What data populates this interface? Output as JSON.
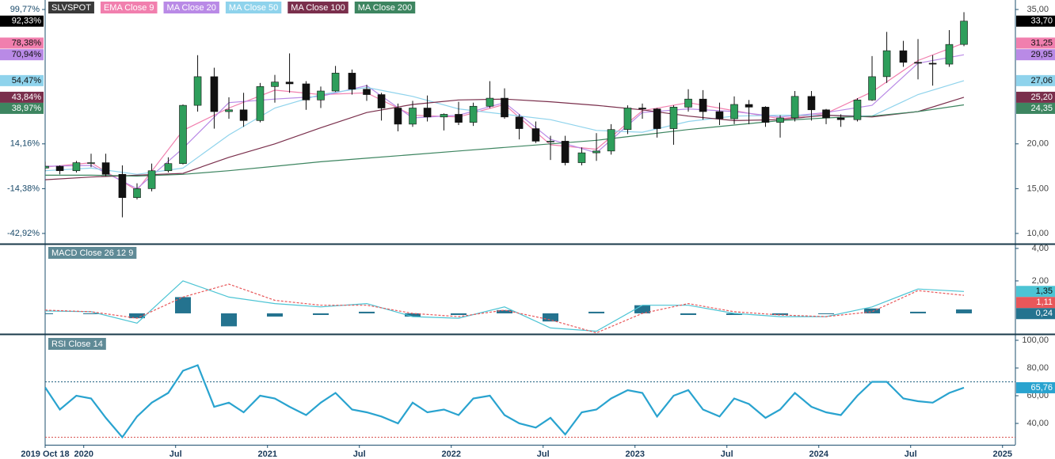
{
  "chart_data": [
    {
      "type": "candlestick",
      "name": "SLVSPOT",
      "color": "#000000",
      "up_color": "#2e9e5b",
      "down_color": "#111111",
      "x": [
        2019.79,
        2019.87,
        2019.96,
        2020.04,
        2020.12,
        2020.21,
        2020.29,
        2020.37,
        2020.46,
        2020.54,
        2020.62,
        2020.71,
        2020.79,
        2020.87,
        2020.96,
        2021.04,
        2021.12,
        2021.21,
        2021.29,
        2021.37,
        2021.46,
        2021.54,
        2021.62,
        2021.71,
        2021.79,
        2021.87,
        2021.96,
        2022.04,
        2022.12,
        2022.21,
        2022.29,
        2022.37,
        2022.46,
        2022.54,
        2022.62,
        2022.71,
        2022.79,
        2022.87,
        2022.96,
        2023.04,
        2023.12,
        2023.21,
        2023.29,
        2023.37,
        2023.46,
        2023.54,
        2023.62,
        2023.71,
        2023.79,
        2023.87,
        2023.96,
        2024.04,
        2024.12,
        2024.21,
        2024.29,
        2024.37,
        2024.46,
        2024.54,
        2024.62,
        2024.71,
        2024.79
      ],
      "open": [
        17.3,
        17.5,
        17.0,
        17.9,
        17.9,
        16.6,
        14.0,
        15.0,
        17.0,
        17.8,
        24.3,
        27.5,
        23.6,
        23.8,
        22.6,
        26.4,
        26.9,
        26.7,
        24.9,
        25.9,
        27.9,
        26.1,
        25.5,
        24.0,
        22.2,
        24.0,
        23.0,
        23.3,
        22.4,
        24.2,
        25.1,
        23.0,
        21.7,
        20.3,
        20.3,
        17.9,
        19.0,
        19.2,
        21.6,
        24.0,
        23.9,
        21.7,
        24.1,
        25.0,
        23.6,
        22.8,
        24.4,
        24.1,
        22.4,
        22.9,
        25.3,
        23.8,
        22.9,
        22.7,
        24.9,
        27.5,
        30.4,
        29.1,
        29.0,
        28.9,
        31.1
      ],
      "high": [
        18.0,
        17.6,
        18.1,
        18.9,
        18.9,
        17.6,
        15.6,
        17.8,
        18.5,
        24.4,
        29.9,
        28.5,
        25.2,
        25.7,
        26.8,
        27.7,
        30.1,
        27.0,
        26.4,
        28.7,
        28.3,
        26.6,
        25.7,
        24.5,
        24.8,
        25.4,
        23.4,
        24.7,
        24.6,
        27.0,
        26.2,
        23.3,
        22.5,
        20.9,
        20.9,
        19.6,
        21.2,
        22.2,
        24.3,
        24.5,
        24.0,
        24.3,
        26.1,
        26.0,
        24.6,
        25.3,
        24.9,
        24.2,
        23.2,
        25.9,
        25.9,
        23.9,
        23.3,
        25.1,
        29.8,
        32.5,
        31.5,
        31.7,
        29.9,
        32.7,
        34.7
      ],
      "low": [
        16.9,
        16.6,
        16.8,
        17.4,
        16.4,
        11.8,
        13.8,
        14.7,
        16.8,
        17.7,
        23.6,
        21.7,
        22.8,
        21.9,
        22.4,
        24.6,
        25.7,
        23.8,
        24.0,
        25.8,
        25.5,
        24.8,
        22.6,
        21.4,
        21.9,
        22.5,
        21.5,
        22.1,
        22.0,
        24.0,
        22.8,
        20.5,
        20.1,
        18.2,
        17.6,
        17.6,
        18.1,
        18.8,
        21.1,
        22.8,
        20.7,
        19.9,
        23.6,
        22.7,
        22.1,
        22.2,
        22.2,
        21.9,
        20.7,
        22.5,
        22.6,
        22.2,
        21.9,
        22.5,
        24.8,
        26.8,
        28.6,
        27.2,
        26.5,
        28.6,
        30.9
      ],
      "close": [
        17.5,
        17.0,
        17.9,
        17.9,
        16.6,
        14.0,
        15.0,
        17.0,
        17.8,
        24.3,
        27.5,
        23.6,
        23.8,
        22.6,
        26.4,
        26.9,
        26.7,
        24.9,
        25.9,
        27.9,
        26.1,
        25.5,
        24.0,
        22.2,
        24.0,
        23.0,
        23.3,
        22.4,
        24.2,
        25.1,
        23.0,
        21.7,
        20.3,
        20.3,
        17.9,
        19.0,
        19.2,
        21.6,
        24.0,
        23.9,
        21.7,
        24.1,
        25.0,
        23.6,
        22.8,
        24.4,
        24.1,
        22.4,
        22.9,
        25.3,
        23.8,
        22.9,
        22.7,
        24.9,
        27.5,
        30.4,
        29.1,
        29.0,
        28.9,
        31.1,
        33.7
      ],
      "last_label": "33,70",
      "last_percent_label": "92,33%",
      "xlim": [
        2019.79,
        2025.07
      ],
      "ylim": [
        8.85,
        36.06
      ],
      "yticks": [
        {
          "value": 10,
          "label": "10,00"
        },
        {
          "value": 15,
          "label": "15,00"
        },
        {
          "value": 20,
          "label": "20,00"
        },
        {
          "value": 35,
          "label": "35,00"
        }
      ],
      "yticks_left": [
        {
          "value": 35,
          "label": "99,77%"
        },
        {
          "value": 20,
          "label": "14,16%"
        },
        {
          "value": 15,
          "label": "-14,38%"
        },
        {
          "value": 10,
          "label": "-42,92%"
        }
      ],
      "overlays": {
        "x": [
          2019.79,
          2020.04,
          2020.29,
          2020.54,
          2020.79,
          2021.04,
          2021.29,
          2021.54,
          2021.79,
          2022.04,
          2022.29,
          2022.54,
          2022.79,
          2023.04,
          2023.29,
          2023.54,
          2023.79,
          2024.04,
          2024.29,
          2024.54,
          2024.79
        ],
        "series": [
          {
            "name": "EMA Close 9",
            "color": "#f17fae",
            "last_label": "31,25",
            "last_percent_label": "78,38%",
            "values": [
              17.4,
              17.9,
              14.8,
              21.5,
              24.0,
              26.0,
              25.5,
              25.7,
              23.2,
              23.0,
              24.4,
              19.9,
              19.4,
              23.7,
              24.6,
              23.7,
              22.8,
              23.4,
              25.8,
              29.3,
              31.25
            ]
          },
          {
            "name": "MA Close 20",
            "color": "#b98ae6",
            "last_label": "29,95",
            "last_percent_label": "70,94%",
            "values": [
              17.5,
              17.6,
              15.0,
              19.5,
              24.6,
              25.0,
              25.3,
              26.5,
              22.9,
              23.2,
              24.6,
              20.5,
              19.0,
              23.5,
              23.9,
              23.6,
              23.0,
              23.5,
              24.3,
              29.0,
              29.95
            ]
          },
          {
            "name": "MA Close 50",
            "color": "#8fd3ec",
            "last_label": "27,06",
            "last_percent_label": "54,47%",
            "values": [
              17.0,
              17.3,
              16.6,
              17.3,
              21.0,
              24.0,
              25.5,
              26.3,
              25.3,
              23.9,
              23.3,
              22.7,
              21.5,
              21.3,
              22.5,
              23.1,
              23.2,
              23.2,
              23.1,
              25.5,
              27.06
            ]
          },
          {
            "name": "MA Close 100",
            "color": "#7a2f4c",
            "last_label": "25,20",
            "last_percent_label": "43,84%",
            "values": [
              16.0,
              16.3,
              16.5,
              16.7,
              18.5,
              20.0,
              21.8,
              23.5,
              24.4,
              24.9,
              25.0,
              24.7,
              24.3,
              23.8,
              23.1,
              22.6,
              22.7,
              23.2,
              23.0,
              23.6,
              25.2
            ]
          },
          {
            "name": "MA Close 200",
            "color": "#3d8560",
            "last_label": "24,35",
            "last_percent_label": "38,97%",
            "values": [
              16.5,
              16.5,
              16.4,
              16.6,
              17.0,
              17.5,
              18.0,
              18.4,
              18.8,
              19.2,
              19.6,
              20.0,
              20.4,
              21.0,
              21.6,
              22.1,
              22.6,
              22.9,
              23.1,
              23.6,
              24.35
            ]
          }
        ]
      }
    },
    {
      "type": "macd",
      "title": "MACD Close 26 12 9",
      "x": [
        2019.79,
        2020.04,
        2020.29,
        2020.54,
        2020.79,
        2021.04,
        2021.29,
        2021.54,
        2021.79,
        2022.04,
        2022.29,
        2022.54,
        2022.79,
        2023.04,
        2023.29,
        2023.54,
        2023.79,
        2024.04,
        2024.29,
        2024.54,
        2024.79
      ],
      "macd": {
        "color": "#4cc4d4",
        "last_label": "1,35",
        "values": [
          0.15,
          0.1,
          -0.6,
          2.0,
          1.0,
          0.6,
          0.4,
          0.6,
          -0.2,
          -0.3,
          0.4,
          -0.9,
          -1.1,
          0.5,
          0.5,
          0.0,
          -0.2,
          -0.2,
          0.4,
          1.5,
          1.35
        ]
      },
      "signal": {
        "color": "#e8575a",
        "last_label": "1,11",
        "values": [
          0.2,
          0.1,
          -0.3,
          1.0,
          1.8,
          0.8,
          0.5,
          0.5,
          0.0,
          -0.2,
          0.2,
          -0.4,
          -1.2,
          0.0,
          0.6,
          0.1,
          -0.1,
          -0.2,
          0.1,
          1.4,
          1.11
        ]
      },
      "histogram": {
        "color": "#24738f",
        "last_label": "0,24",
        "values": [
          -0.05,
          0,
          -0.3,
          1.0,
          -0.8,
          -0.2,
          -0.1,
          0.1,
          -0.2,
          -0.1,
          0.2,
          -0.5,
          0.1,
          0.5,
          -0.1,
          -0.1,
          -0.1,
          0,
          0.3,
          0.1,
          0.24
        ]
      },
      "xlim": [
        2019.79,
        2025.07
      ],
      "ylim": [
        -1.27,
        4.24
      ],
      "yticks": [
        {
          "value": 4,
          "label": "4,00"
        },
        {
          "value": 2,
          "label": "2,00"
        }
      ]
    },
    {
      "type": "line",
      "title": "RSI Close 14",
      "color": "#29a3cf",
      "last_label": "65,76",
      "x": [
        2019.79,
        2019.87,
        2019.96,
        2020.04,
        2020.12,
        2020.21,
        2020.29,
        2020.37,
        2020.46,
        2020.54,
        2020.62,
        2020.71,
        2020.79,
        2020.87,
        2020.96,
        2021.04,
        2021.12,
        2021.21,
        2021.29,
        2021.37,
        2021.46,
        2021.54,
        2021.62,
        2021.71,
        2021.79,
        2021.87,
        2021.96,
        2022.04,
        2022.12,
        2022.21,
        2022.29,
        2022.37,
        2022.46,
        2022.54,
        2022.62,
        2022.71,
        2022.79,
        2022.87,
        2022.96,
        2023.04,
        2023.12,
        2023.21,
        2023.29,
        2023.37,
        2023.46,
        2023.54,
        2023.62,
        2023.71,
        2023.79,
        2023.87,
        2023.96,
        2024.04,
        2024.12,
        2024.21,
        2024.29,
        2024.37,
        2024.46,
        2024.54,
        2024.62,
        2024.71,
        2024.79
      ],
      "values": [
        66,
        50,
        60,
        58,
        44,
        30,
        45,
        55,
        62,
        78,
        82,
        52,
        55,
        48,
        60,
        58,
        52,
        46,
        55,
        62,
        50,
        48,
        45,
        40,
        55,
        48,
        50,
        46,
        58,
        60,
        46,
        40,
        37,
        44,
        32,
        48,
        50,
        58,
        64,
        62,
        45,
        60,
        64,
        50,
        45,
        58,
        54,
        44,
        50,
        62,
        52,
        48,
        46,
        60,
        70,
        70,
        58,
        56,
        55,
        62,
        65.76
      ],
      "levels": [
        {
          "value": 70,
          "color": "#1f5f80"
        },
        {
          "value": 30,
          "color": "#d9534f"
        }
      ],
      "xlim": [
        2019.79,
        2025.07
      ],
      "ylim": [
        24.6,
        104
      ],
      "yticks": [
        {
          "value": 100,
          "label": "100,00"
        },
        {
          "value": 80,
          "label": "80,00"
        },
        {
          "value": 60,
          "label": "60,00"
        },
        {
          "value": 40,
          "label": "40,00"
        }
      ],
      "xticks": [
        {
          "value": 2019.79,
          "label": "2019 Oct 18"
        },
        2020,
        {
          "value": 2020.5,
          "label": "Jul"
        },
        2021,
        {
          "value": 2021.5,
          "label": "Jul"
        },
        2022,
        {
          "value": 2022.5,
          "label": "Jul"
        },
        2023,
        {
          "value": 2023.5,
          "label": "Jul"
        },
        2024,
        {
          "value": 2024.5,
          "label": "Jul"
        },
        2025
      ]
    }
  ]
}
